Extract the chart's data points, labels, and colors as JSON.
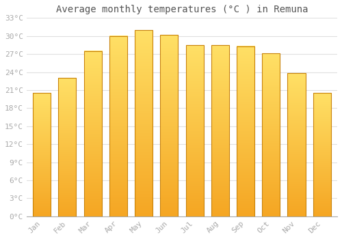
{
  "title": "Average monthly temperatures (°C ) in Remuna",
  "months": [
    "Jan",
    "Feb",
    "Mar",
    "Apr",
    "May",
    "Jun",
    "Jul",
    "Aug",
    "Sep",
    "Oct",
    "Nov",
    "Dec"
  ],
  "values": [
    20.5,
    23.0,
    27.5,
    30.0,
    31.0,
    30.2,
    28.5,
    28.5,
    28.3,
    27.1,
    23.8,
    20.5
  ],
  "bar_color_bottom": "#F5A623",
  "bar_color_top": "#FFE066",
  "bar_edge_color": "#C8820A",
  "ylim": [
    0,
    33
  ],
  "ytick_step": 3,
  "background_color": "#ffffff",
  "grid_color": "#e0e0e0",
  "title_fontsize": 10,
  "tick_fontsize": 8,
  "tick_label_color": "#aaaaaa",
  "bar_width": 0.7
}
